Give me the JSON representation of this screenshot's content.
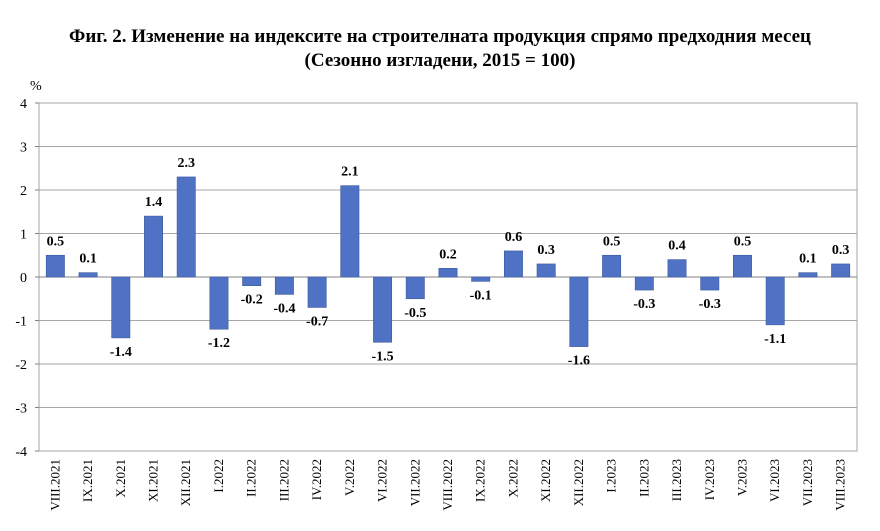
{
  "title_line1": "Фиг. 2. Изменение на индексите на строителната продукция спрямо предходния месец",
  "title_line2": "(Сезонно изгладени, 2015 = 100)",
  "chart_data": {
    "type": "bar",
    "ylabel": "%",
    "ylim": [
      -4,
      4
    ],
    "yticks": [
      4,
      3,
      2,
      1,
      0,
      -1,
      -2,
      -3,
      -4
    ],
    "grid": true,
    "bar_color": "#4f72c4",
    "categories": [
      "VIII.2021",
      "IX.2021",
      "X.2021",
      "XI.2021",
      "XII.2021",
      "I.2022",
      "II.2022",
      "III.2022",
      "IV.2022",
      "V.2022",
      "VI.2022",
      "VII.2022",
      "VIII.2022",
      "IX.2022",
      "X.2022",
      "XI.2022",
      "XII.2022",
      "I.2023",
      "II.2023",
      "III.2023",
      "IV.2023",
      "V.2023",
      "VI.2023",
      "VII.2023",
      "VIII.2023"
    ],
    "values": [
      0.5,
      0.1,
      -1.4,
      1.4,
      2.3,
      -1.2,
      -0.2,
      -0.4,
      -0.7,
      2.1,
      -1.5,
      -0.5,
      0.2,
      -0.1,
      0.6,
      0.3,
      -1.6,
      0.5,
      -0.3,
      0.4,
      -0.3,
      0.5,
      -1.1,
      0.1,
      0.3
    ],
    "labels": [
      "0.5",
      "0.1",
      "-1.4",
      "1.4",
      "2.3",
      "-1.2",
      "-0.2",
      "-0.4",
      "-0.7",
      "2.1",
      "-1.5",
      "-0.5",
      "0.2",
      "-0.1",
      "0.6",
      "0.3",
      "-1.6",
      "0.5",
      "-0.3",
      "0.4",
      "-0.3",
      "0.5",
      "-1.1",
      "0.1",
      "0.3"
    ]
  }
}
